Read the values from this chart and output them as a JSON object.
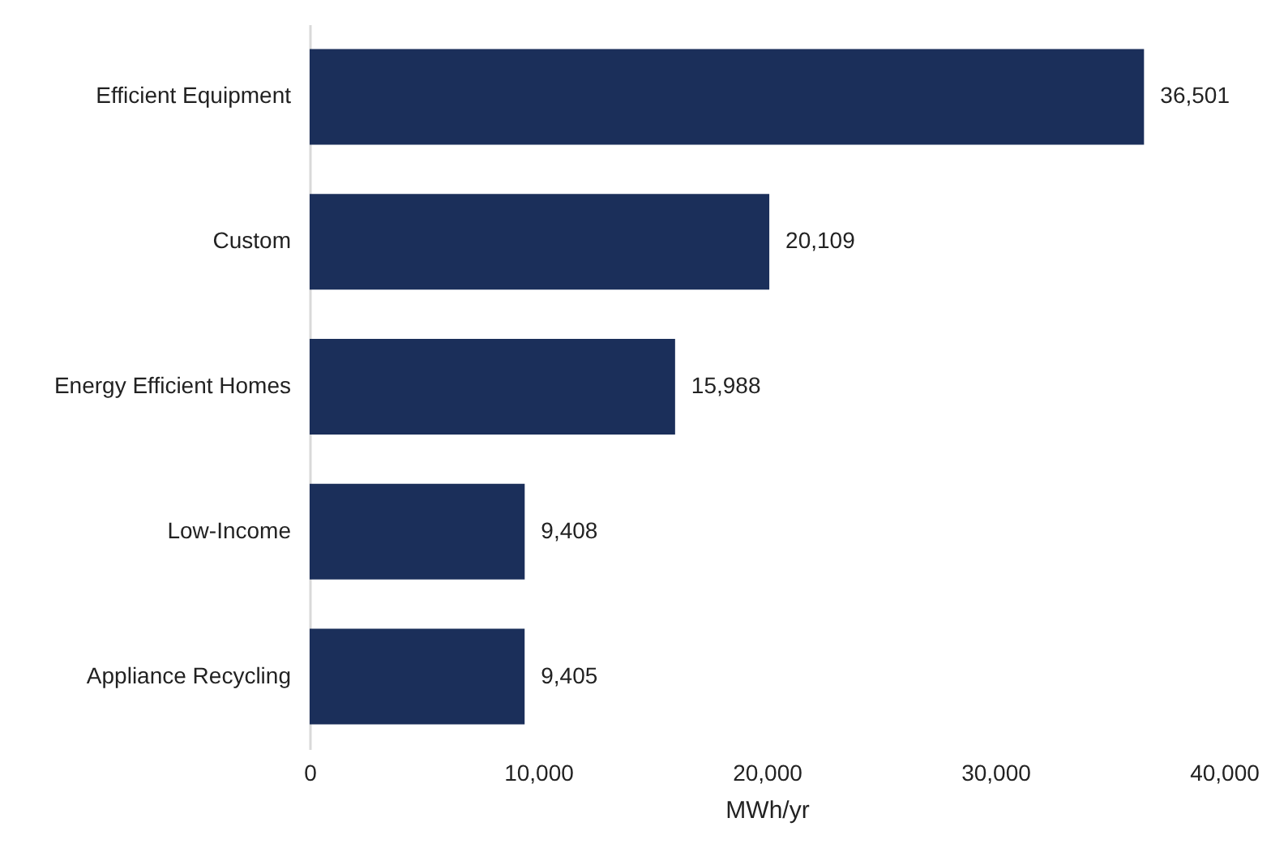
{
  "chart_data": {
    "type": "bar",
    "orientation": "horizontal",
    "xlabel": "MWh/yr",
    "categories": [
      "Efficient Equipment",
      "Custom",
      "Energy Efficient Homes",
      "Low-Income",
      "Appliance Recycling"
    ],
    "values": [
      36501,
      20109,
      15988,
      9408,
      9405
    ],
    "color": "#1b2f5a",
    "xlim": [
      0,
      40000
    ],
    "xticks": [
      {
        "value": 0,
        "label": "0"
      },
      {
        "value": 10000,
        "label": "10,000"
      },
      {
        "value": 20000,
        "label": "20,000"
      },
      {
        "value": 30000,
        "label": "30,000"
      },
      {
        "value": 40000,
        "label": "40,000"
      }
    ],
    "value_labels": [
      "36,501",
      "20,109",
      "15,988",
      "9,408",
      "9,405"
    ],
    "grid": false
  }
}
